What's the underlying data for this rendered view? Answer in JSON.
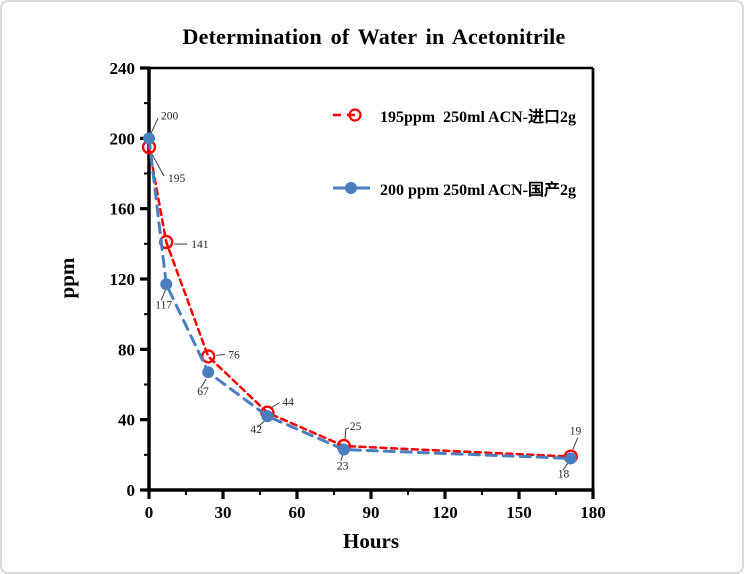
{
  "window": {
    "background": "#ffffff",
    "border_color": "#d9d9d9"
  },
  "chart_data": {
    "type": "line",
    "title": "Determination of Water in Acetonitrile",
    "xlabel": "Hours",
    "ylabel": "ppm",
    "xlim": [
      0,
      180
    ],
    "ylim": [
      0,
      240
    ],
    "x_major_ticks": [
      0,
      30,
      60,
      90,
      120,
      150,
      180
    ],
    "x_minor_step": 15,
    "y_major_ticks": [
      0,
      40,
      80,
      120,
      160,
      200,
      240
    ],
    "y_minor_step": 20,
    "grid": false,
    "legend_position": "inside-upper-right",
    "axis_color": "#000000",
    "data_label_color": "#262626",
    "x": [
      0,
      7,
      24,
      48,
      79,
      171
    ],
    "series": [
      {
        "name": "195ppm  250ml ACN-进口2g",
        "color": "#ff0000",
        "line_style": "dashed",
        "marker": "open-circle",
        "values": [
          195,
          141,
          76,
          44,
          25,
          19
        ],
        "point_labels": [
          "195",
          "141",
          "76",
          "44",
          "25",
          "19"
        ],
        "label_offsets": [
          [
            19,
            31
          ],
          [
            25,
            2
          ],
          [
            20,
            -2
          ],
          [
            15,
            -11
          ],
          [
            6,
            -20
          ],
          [
            -1,
            -26
          ]
        ],
        "leaders": [
          [
            [
              3,
              7
            ],
            [
              15,
              29
            ]
          ],
          [
            [
              8,
              2
            ],
            [
              21,
              2
            ]
          ],
          [
            [
              8,
              -1
            ],
            [
              17,
              -2
            ]
          ],
          [
            [
              4,
              -5
            ],
            [
              12,
              -10
            ]
          ],
          [
            [
              1,
              -5
            ],
            [
              2,
              -17
            ],
            [
              5,
              -18
            ]
          ],
          [
            [
              2,
              -7
            ],
            [
              7,
              -19
            ]
          ]
        ]
      },
      {
        "name": "200 ppm 250ml ACN-国产2g",
        "color": "#4a7ebf",
        "line_style": "long-dashed",
        "marker": "filled-circle",
        "values": [
          200,
          117,
          67,
          42,
          23,
          18
        ],
        "point_labels": [
          "200",
          "117",
          "67",
          "42",
          "23",
          "18"
        ],
        "label_offsets": [
          [
            12,
            -23
          ],
          [
            -11,
            20
          ],
          [
            -11,
            19
          ],
          [
            -17,
            13
          ],
          [
            -7,
            16
          ],
          [
            -13,
            15
          ]
        ],
        "leaders": [
          [
            [
              2,
              -5
            ],
            [
              9,
              -20
            ]
          ],
          [
            [
              -1,
              6
            ],
            [
              -5,
              16
            ]
          ],
          [
            [
              -2,
              7
            ],
            [
              -7,
              15
            ]
          ],
          [
            [
              -3,
              5
            ],
            [
              -10,
              11
            ]
          ],
          [
            [
              -1,
              5
            ],
            [
              -3,
              11
            ]
          ],
          [
            [
              -3,
              5
            ],
            [
              -8,
              12
            ]
          ]
        ]
      }
    ]
  }
}
